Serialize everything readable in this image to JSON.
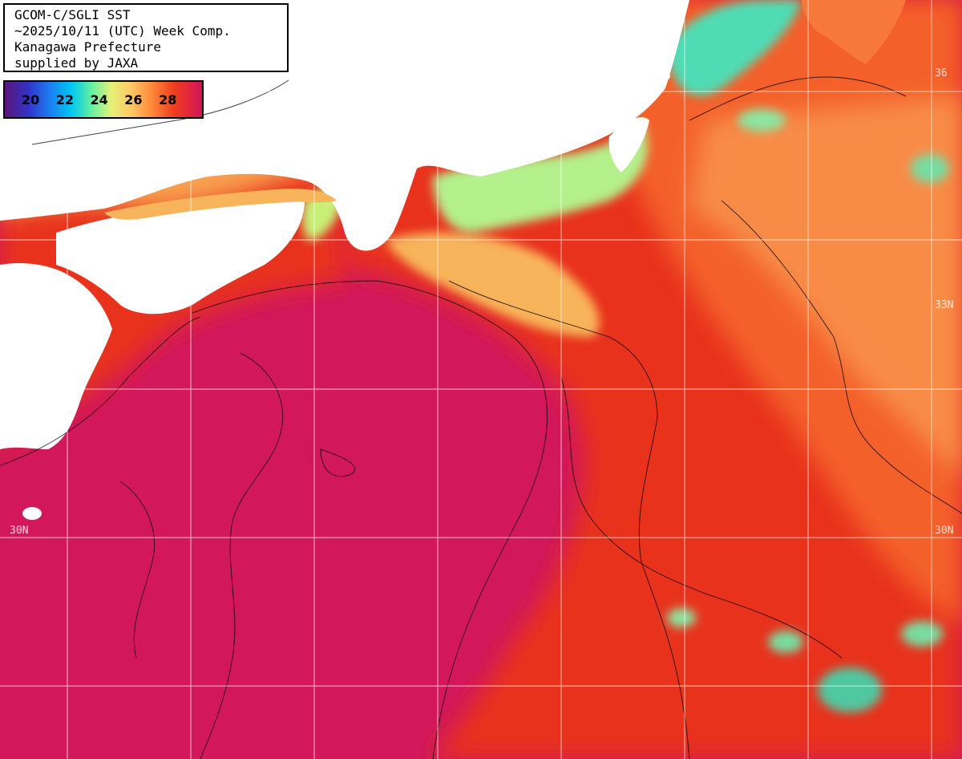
{
  "info": {
    "line1": "GCOM-C/SGLI SST",
    "line2": "~2025/10/11 (UTC) Week Comp.",
    "line3": "Kanagawa Prefecture",
    "line4": "supplied by JAXA"
  },
  "legend": {
    "labels": [
      "20",
      "22",
      "24",
      "26",
      "28"
    ],
    "label_values": [
      20,
      22,
      24,
      26,
      28
    ],
    "range": [
      18.5,
      30
    ]
  },
  "latitude_labels": {
    "lat33_right": "33N",
    "lat30_left": "30N",
    "lat30_right": "30N",
    "lat36_right": "36"
  },
  "colors": {
    "land": "#ffffff",
    "warmest_sea": "#d2185a",
    "warm_sea": "#ec3c1e",
    "mid_sea": "#f8783c",
    "cool_sea": "#f8b45a",
    "coastal_cool": "#b4f08c",
    "coastal_cold": "#50dcb4",
    "grid": "#ffffff",
    "contour": "#000000"
  }
}
